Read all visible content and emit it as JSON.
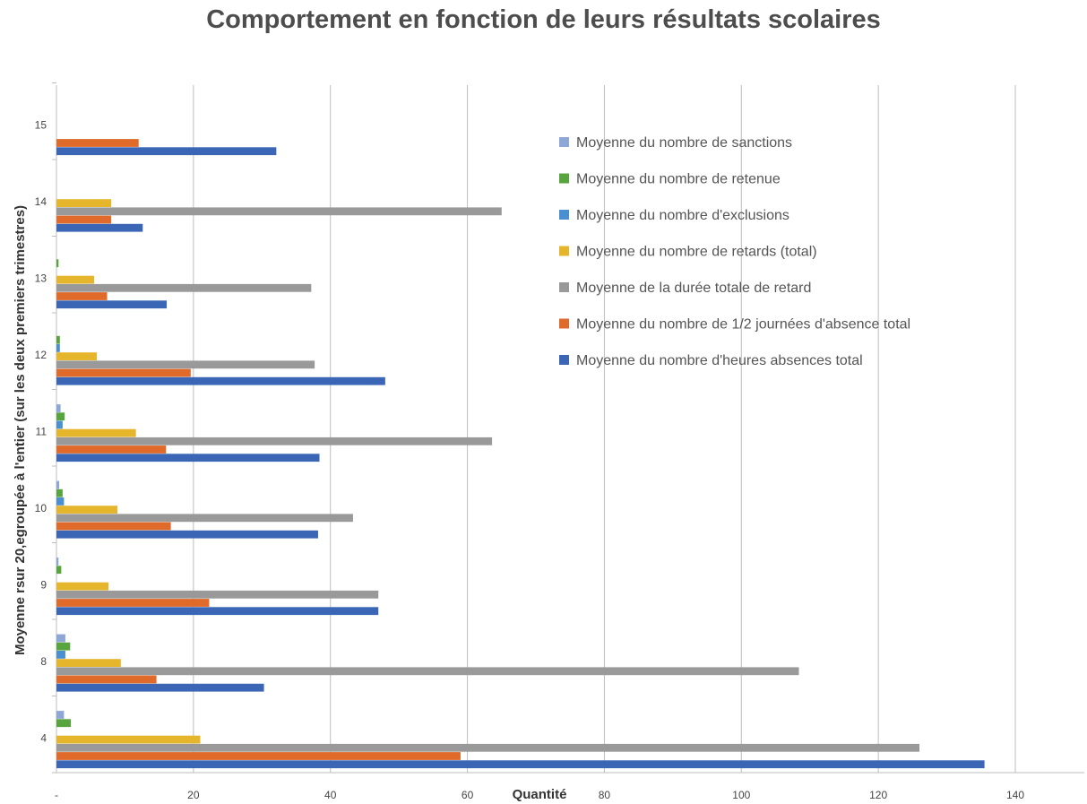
{
  "chart_data": {
    "type": "bar",
    "orientation": "horizontal",
    "title": "Comportement en fonction de leurs résultats scolaires",
    "xlabel": "Quantité",
    "ylabel": "Moyenne rsur 20,egroupée à l'entier   (sur les deux premiers trimestres)",
    "xlim": [
      0,
      150
    ],
    "xticks": [
      0,
      20,
      40,
      60,
      80,
      100,
      120,
      140
    ],
    "xtick_labels": [
      "-",
      "20",
      "40",
      "60",
      "80",
      "100",
      "120",
      "140"
    ],
    "grid": "vertical",
    "legend_position": "top-right",
    "categories": [
      "4",
      "8",
      "9",
      "10",
      "11",
      "12",
      "13",
      "14",
      "15"
    ],
    "series": [
      {
        "name": "Moyenne du nombre d'heures absences total",
        "color": "#3a66b5",
        "values": [
          135.5,
          30.3,
          47,
          38.2,
          38.4,
          48,
          16.1,
          12.6,
          32.1
        ]
      },
      {
        "name": "Moyenne du nombre de 1/2 journées d'absence total",
        "color": "#e06a2a",
        "values": [
          59,
          14.6,
          22.3,
          16.7,
          16,
          19.6,
          7.4,
          8,
          12
        ]
      },
      {
        "name": "Moyenne de la durée totale de retard",
        "color": "#999999",
        "values": [
          126,
          108.4,
          47,
          43.3,
          63.6,
          37.7,
          37.2,
          65,
          0
        ]
      },
      {
        "name": "Moyenne du nombre de retards (total)",
        "color": "#e5b52b",
        "values": [
          21,
          9.4,
          7.6,
          8.9,
          11.6,
          5.9,
          5.5,
          8,
          0
        ]
      },
      {
        "name": "Moyenne du nombre d'exclusions",
        "color": "#4a8fcf",
        "values": [
          0,
          1.3,
          0,
          1.1,
          0.9,
          0.5,
          0,
          0,
          0
        ]
      },
      {
        "name": "Moyenne du nombre de retenue",
        "color": "#58a43e",
        "values": [
          2.1,
          2,
          0.7,
          0.9,
          1.2,
          0.5,
          0.3,
          0,
          0
        ]
      },
      {
        "name": "Moyenne du nombre de sanctions",
        "color": "#8ea7d6",
        "values": [
          1.1,
          1.3,
          0.3,
          0.4,
          0.6,
          0,
          0,
          0,
          0
        ]
      }
    ],
    "legend_order": [
      6,
      5,
      4,
      3,
      2,
      1,
      0
    ]
  }
}
